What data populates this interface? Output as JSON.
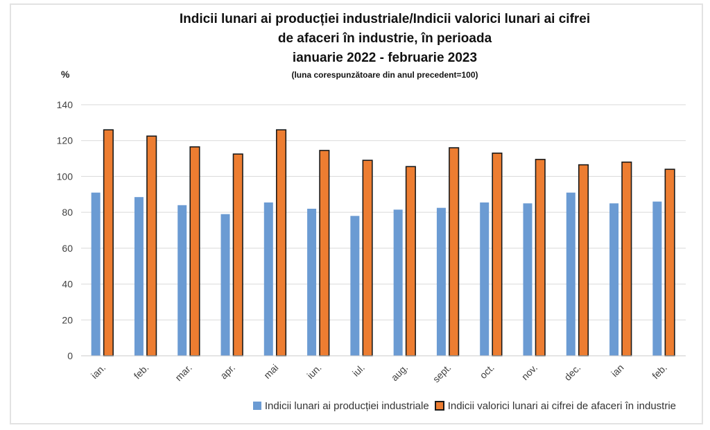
{
  "chart_data": {
    "type": "bar",
    "title_lines": [
      "Indicii lunari ai producției industriale/Indicii valorici lunari ai cifrei",
      "de afaceri în industrie, în perioada",
      "ianuarie 2022 - februarie 2023"
    ],
    "subtitle": "(luna corespunzătoare din anul precedent=100)",
    "unit_label": "%",
    "categories": [
      "ian.",
      "feb.",
      "mar.",
      "apr.",
      "mai",
      "iun.",
      "iul.",
      "aug.",
      "sept.",
      "oct.",
      "nov.",
      "dec.",
      "ian",
      "feb."
    ],
    "series": [
      {
        "name": "Indicii lunari ai producției industriale",
        "color": "#6B9BD3",
        "values": [
          91,
          88.5,
          84,
          79,
          85.5,
          82,
          78,
          81.5,
          82.5,
          85.5,
          85,
          91,
          85,
          86
        ]
      },
      {
        "name": "Indicii valorici lunari ai cifrei de afaceri în industrie",
        "color": "#ED7D31",
        "border_color": "#1a1a1a",
        "values": [
          126,
          122.5,
          116.5,
          112.5,
          126,
          114.5,
          109,
          105.5,
          116,
          113,
          109.5,
          106.5,
          108,
          104
        ]
      }
    ],
    "ylim": [
      0,
      140
    ],
    "ytick_step": 20,
    "grid": true,
    "legend_position": "bottom",
    "gridline_color": "#d9d9d9",
    "axis_label_color": "#404040"
  }
}
